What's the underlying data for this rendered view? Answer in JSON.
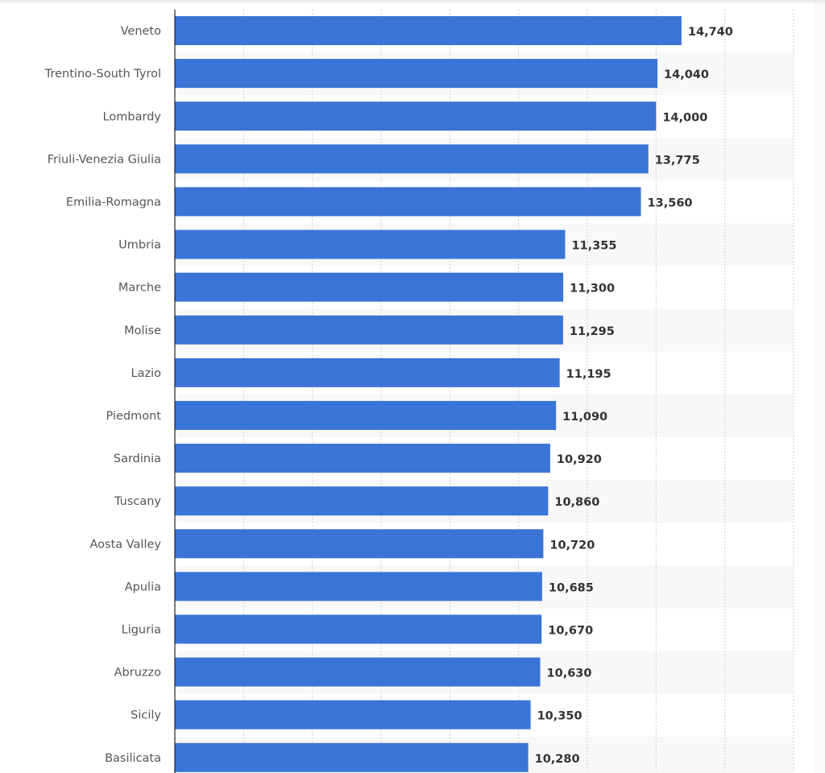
{
  "chart_data": {
    "type": "bar",
    "orientation": "horizontal",
    "title": "",
    "xlabel": "",
    "ylabel": "",
    "categories": [
      "Veneto",
      "Trentino-South Tyrol",
      "Lombardy",
      "Friuli-Venezia Giulia",
      "Emilia-Romagna",
      "Umbria",
      "Marche",
      "Molise",
      "Lazio",
      "Piedmont",
      "Sardinia",
      "Tuscany",
      "Aosta Valley",
      "Apulia",
      "Liguria",
      "Abruzzo",
      "Sicily",
      "Basilicata"
    ],
    "values": [
      14740,
      14040,
      14000,
      13775,
      13560,
      11355,
      11300,
      11295,
      11195,
      11090,
      10920,
      10860,
      10720,
      10685,
      10670,
      10630,
      10350,
      10280
    ],
    "value_labels": [
      "14,740",
      "14,040",
      "14,000",
      "13,775",
      "13,560",
      "11,355",
      "11,300",
      "11,295",
      "11,195",
      "11,090",
      "10,920",
      "10,860",
      "10,720",
      "10,685",
      "10,670",
      "10,630",
      "10,350",
      "10,280"
    ],
    "xlim": [
      0,
      18000
    ],
    "grid_step": 2000,
    "grid": true,
    "bar_color": "#3a74d6"
  }
}
